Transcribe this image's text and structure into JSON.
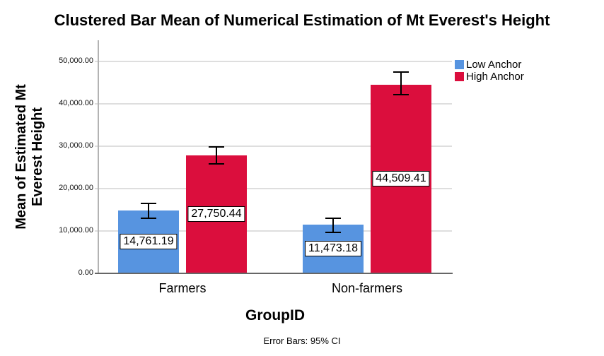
{
  "title": "Clustered Bar Mean of Numerical Estimation of Mt Everest's Height",
  "footnote": "Error Bars: 95% CI",
  "chart_data": {
    "type": "bar",
    "title": "Clustered Bar Mean of Numerical Estimation of Mt Everest's Height",
    "xlabel": "GroupID",
    "ylabel": "Mean of Estimated Mt Everest Height",
    "ylabel_lines": [
      "Mean of Estimated Mt",
      "Everest Height"
    ],
    "categories": [
      "Farmers",
      "Non-farmers"
    ],
    "series": [
      {
        "name": "Low Anchor",
        "color": "#5794E0",
        "values": [
          14761.19,
          11473.18
        ],
        "value_labels": [
          "14,761.19",
          "11,473.18"
        ],
        "ci_upper": [
          16450,
          12950
        ],
        "ci_lower": [
          13050,
          9650
        ]
      },
      {
        "name": "High Anchor",
        "color": "#DB0E3D",
        "values": [
          27750.44,
          44509.41
        ],
        "value_labels": [
          "27,750.44",
          "44,509.41"
        ],
        "ci_upper": [
          29900,
          47500
        ],
        "ci_lower": [
          25900,
          42200
        ]
      }
    ],
    "ylim": [
      0,
      55000
    ],
    "ytick_values": [
      0,
      10000,
      20000,
      30000,
      40000,
      50000
    ],
    "ytick_labels": [
      "0.00",
      "10,000.00",
      "20,000.00",
      "30,000.00",
      "40,000.00",
      "50,000.00"
    ],
    "grid": true,
    "legend_position": "top-right",
    "error_bars": "95% CI"
  }
}
